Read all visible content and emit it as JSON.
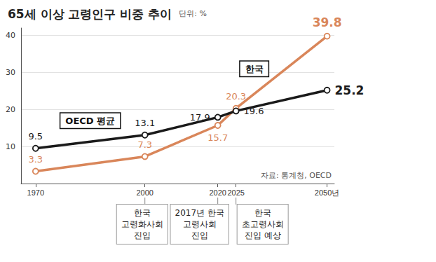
{
  "chart_data": {
    "type": "line",
    "title": "65세 이상 고령인구 비중 추이",
    "subtitle": "단위: %",
    "x": [
      1970,
      2000,
      2020,
      2025,
      2050
    ],
    "series": [
      {
        "name": "한국",
        "color": "#d9865a",
        "values": [
          3.3,
          7.3,
          15.7,
          20.3,
          39.8
        ]
      },
      {
        "name": "OECD 평균",
        "color": "#1a1a1a",
        "values": [
          9.5,
          13.1,
          17.9,
          19.6,
          25.2
        ]
      }
    ],
    "xlim": [
      1966,
      2052
    ],
    "xticks": [
      1970,
      2000,
      2020,
      2025,
      {
        "value": 2050,
        "label": "2050년"
      }
    ],
    "ylim": [
      0,
      42
    ],
    "yticks": [
      10,
      20,
      30,
      40
    ],
    "grid": true,
    "data_labels": true,
    "marker": "circle",
    "annotations": [
      {
        "text": "한국\n고령화사회\n진입",
        "x": 2000
      },
      {
        "text": "2017년 한국\n고령사회\n진입",
        "x": 2020
      },
      {
        "text": "한국\n초고령사회\n진입 예상",
        "x": 2025
      }
    ],
    "source": "자료: 통계청, OECD"
  }
}
